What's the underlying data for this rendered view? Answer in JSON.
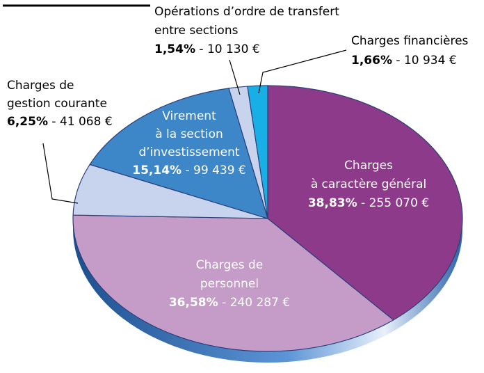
{
  "chart_data": {
    "type": "pie",
    "categories": [
      [
        "Charges",
        "à caractère général"
      ],
      [
        "Charges de",
        "personnel"
      ],
      [
        "Charges de",
        "gestion courante"
      ],
      [
        "Virement",
        "à la section",
        "d’investissement"
      ],
      [
        "Opérations d’ordre de transfert",
        "entre sections"
      ],
      [
        "Charges financières"
      ]
    ],
    "values": [
      38.83,
      36.58,
      6.25,
      15.14,
      1.54,
      1.66
    ],
    "value_labels": [
      "38,83%",
      "36,58%",
      "6,25%",
      "15,14%",
      "1,54%",
      "1,66%"
    ],
    "separator": " - ",
    "amounts": [
      255070,
      240287,
      41068,
      99439,
      10130,
      10934
    ],
    "amount_labels": [
      "255 070 €",
      "240 287 €",
      "41 068 €",
      "99 439 €",
      "10 130 €",
      "10 934 €"
    ],
    "colors": [
      "#8e3a8a",
      "#c59bc8",
      "#c8d4ee",
      "#3d87c9",
      "#c8d4ee",
      "#18afe6"
    ]
  }
}
